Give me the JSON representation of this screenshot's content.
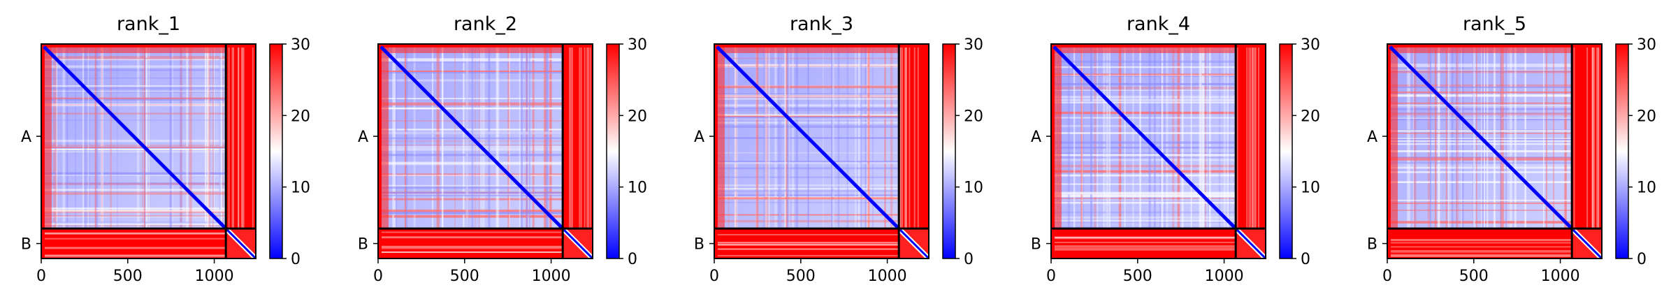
{
  "figure": {
    "panels_count": 5
  },
  "chart_data": [
    {
      "type": "heatmap",
      "title": "rank_1",
      "xlabel": "",
      "ylabel": "",
      "x_ticks": [
        0,
        500,
        1000
      ],
      "y_ticks": [
        "A",
        "B"
      ],
      "xlim": [
        0,
        1240
      ],
      "chain_boundary": 1067,
      "colormap": [
        "#0000ff",
        "#ffffff",
        "#ff0000"
      ],
      "colorbar": {
        "min": 0,
        "max": 30,
        "ticks": [
          0,
          10,
          20,
          30
        ]
      },
      "grid": false
    },
    {
      "type": "heatmap",
      "title": "rank_2",
      "xlabel": "",
      "ylabel": "",
      "x_ticks": [
        0,
        500,
        1000
      ],
      "y_ticks": [
        "A",
        "B"
      ],
      "xlim": [
        0,
        1240
      ],
      "chain_boundary": 1067,
      "colormap": [
        "#0000ff",
        "#ffffff",
        "#ff0000"
      ],
      "colorbar": {
        "min": 0,
        "max": 30,
        "ticks": [
          0,
          10,
          20,
          30
        ]
      },
      "grid": false
    },
    {
      "type": "heatmap",
      "title": "rank_3",
      "xlabel": "",
      "ylabel": "",
      "x_ticks": [
        0,
        500,
        1000
      ],
      "y_ticks": [
        "A",
        "B"
      ],
      "xlim": [
        0,
        1240
      ],
      "chain_boundary": 1067,
      "colormap": [
        "#0000ff",
        "#ffffff",
        "#ff0000"
      ],
      "colorbar": {
        "min": 0,
        "max": 30,
        "ticks": [
          0,
          10,
          20,
          30
        ]
      },
      "grid": false
    },
    {
      "type": "heatmap",
      "title": "rank_4",
      "xlabel": "",
      "ylabel": "",
      "x_ticks": [
        0,
        500,
        1000
      ],
      "y_ticks": [
        "A",
        "B"
      ],
      "xlim": [
        0,
        1240
      ],
      "chain_boundary": 1067,
      "colormap": [
        "#0000ff",
        "#ffffff",
        "#ff0000"
      ],
      "colorbar": {
        "min": 0,
        "max": 30,
        "ticks": [
          0,
          10,
          20,
          30
        ]
      },
      "grid": false
    },
    {
      "type": "heatmap",
      "title": "rank_5",
      "xlabel": "",
      "ylabel": "",
      "x_ticks": [
        0,
        500,
        1000
      ],
      "y_ticks": [
        "A",
        "B"
      ],
      "xlim": [
        0,
        1240
      ],
      "chain_boundary": 1067,
      "colormap": [
        "#0000ff",
        "#ffffff",
        "#ff0000"
      ],
      "colorbar": {
        "min": 0,
        "max": 30,
        "ticks": [
          0,
          10,
          20,
          30
        ]
      },
      "grid": false
    }
  ]
}
